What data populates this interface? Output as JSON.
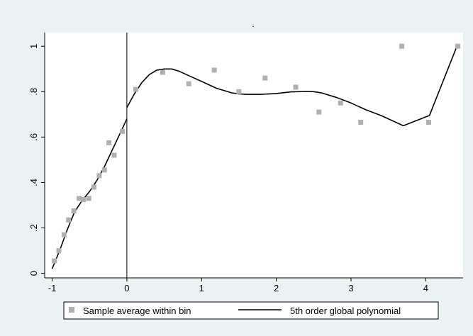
{
  "chart_data": {
    "type": "scatter",
    "title": ".",
    "xlabel": "",
    "ylabel": "",
    "xlim": [
      -1.1,
      4.5
    ],
    "ylim": [
      -0.02,
      1.06
    ],
    "x_ticks": [
      -1,
      0,
      1,
      2,
      3,
      4
    ],
    "x_tick_labels": [
      "-1",
      "0",
      "1",
      "2",
      "3",
      "4"
    ],
    "y_ticks": [
      0,
      0.2,
      0.4,
      0.6,
      0.8,
      1.0
    ],
    "y_tick_labels": [
      "0",
      ".2",
      ".4",
      ".6",
      ".8",
      "1"
    ],
    "cutoff_x": 0,
    "grid": false,
    "legend_position": "bottom",
    "colors": {
      "background": "#eaf2f3",
      "plot_area": "#ffffff",
      "points": "#b0b0b0",
      "line": "#000000"
    },
    "series": [
      {
        "name": "Sample average within bin",
        "kind": "scatter",
        "x": [
          -0.97,
          -0.91,
          -0.84,
          -0.78,
          -0.71,
          -0.64,
          -0.58,
          -0.51,
          -0.44,
          -0.37,
          -0.3,
          -0.24,
          -0.17,
          -0.06,
          0.12,
          0.48,
          0.83,
          1.17,
          1.5,
          1.85,
          2.26,
          2.57,
          2.86,
          3.13,
          3.68,
          4.04,
          4.43
        ],
        "y": [
          0.055,
          0.1,
          0.17,
          0.235,
          0.275,
          0.33,
          0.325,
          0.33,
          0.38,
          0.43,
          0.455,
          0.575,
          0.52,
          0.625,
          0.81,
          0.885,
          0.835,
          0.895,
          0.8,
          0.86,
          0.82,
          0.71,
          0.75,
          0.665,
          1.0,
          0.665,
          1.0
        ]
      },
      {
        "name": "5th order global polynomial",
        "kind": "line",
        "segments": [
          {
            "x": [
              -1.0,
              -0.9,
              -0.8,
              -0.7,
              -0.6,
              -0.5,
              -0.4,
              -0.3,
              -0.2,
              -0.1,
              0.0
            ],
            "y": [
              0.02,
              0.1,
              0.19,
              0.27,
              0.32,
              0.36,
              0.41,
              0.47,
              0.54,
              0.61,
              0.68
            ]
          },
          {
            "x": [
              0.0,
              0.1,
              0.2,
              0.3,
              0.4,
              0.5,
              0.6,
              0.7,
              0.8,
              1.0,
              1.2,
              1.4,
              1.5,
              1.6,
              1.8,
              2.0,
              2.2,
              2.4,
              2.5,
              2.6,
              2.8,
              3.0,
              3.2,
              3.4,
              3.6,
              3.7,
              4.05,
              4.43
            ],
            "y": [
              0.73,
              0.79,
              0.84,
              0.875,
              0.895,
              0.9,
              0.9,
              0.89,
              0.875,
              0.845,
              0.815,
              0.795,
              0.79,
              0.788,
              0.788,
              0.792,
              0.799,
              0.801,
              0.8,
              0.795,
              0.775,
              0.75,
              0.72,
              0.695,
              0.665,
              0.65,
              0.695,
              1.01
            ]
          }
        ]
      }
    ]
  }
}
